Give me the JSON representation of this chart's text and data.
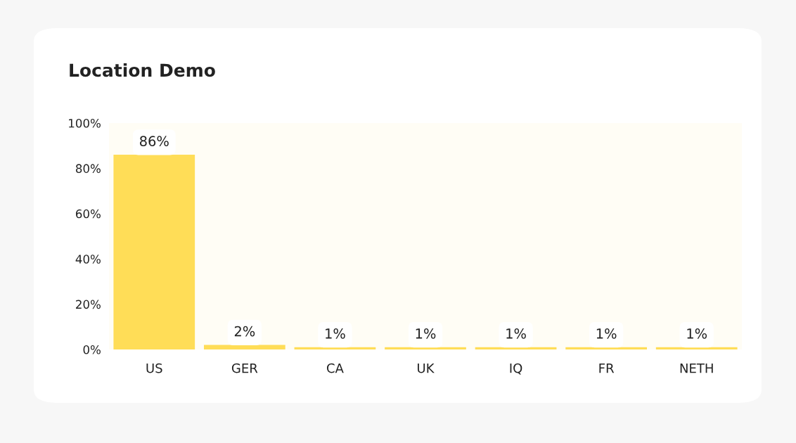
{
  "chart_data": {
    "type": "bar",
    "title": "Location Demo",
    "categories": [
      "US",
      "GER",
      "CA",
      "UK",
      "IQ",
      "FR",
      "NETH"
    ],
    "values": [
      86,
      2,
      1,
      1,
      1,
      1,
      1
    ],
    "value_labels": [
      "86%",
      "2%",
      "1%",
      "1%",
      "1%",
      "1%",
      "1%"
    ],
    "color": "#ffdd57",
    "ylim": [
      0,
      100
    ],
    "yticks": [
      {
        "value": 0,
        "label": "0%"
      },
      {
        "value": 20,
        "label": "20%"
      },
      {
        "value": 40,
        "label": "40%"
      },
      {
        "value": 60,
        "label": "60%"
      },
      {
        "value": 80,
        "label": "80%"
      },
      {
        "value": 100,
        "label": "100%"
      }
    ],
    "grid": false,
    "legend": false
  }
}
